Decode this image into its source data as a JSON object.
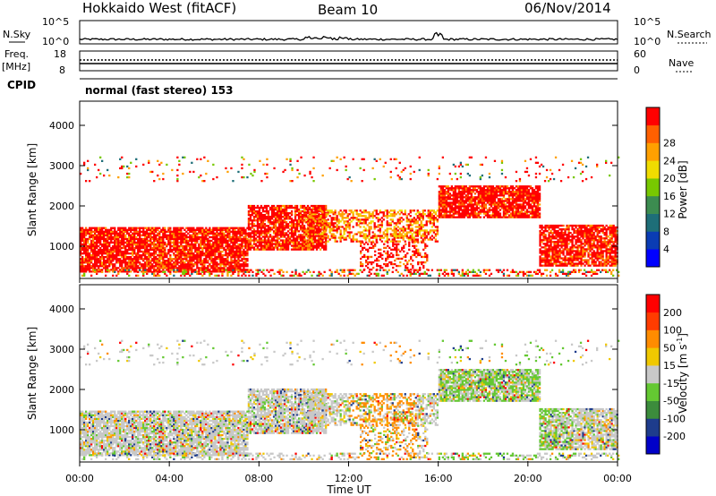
{
  "header": {
    "radar": "Hokkaido West (fitACF)",
    "beam": "Beam 10",
    "date": "06/Nov/2014"
  },
  "top_panels": {
    "nsky_label": "N.Sky",
    "nsearch_label": "N.Search",
    "noise_tick_high": "10^5",
    "noise_tick_low": "10^0",
    "freq_label": "Freq.",
    "freq_unit": "[MHz]",
    "freq_tick_high": "18",
    "freq_tick_low": "8",
    "nave_label": "Nave",
    "nave_tick_high": "60",
    "nave_tick_low": "0",
    "cpid_label": "CPID",
    "mode_text": "normal (fast stereo) 153"
  },
  "colors": {
    "noise_line": "#000000"
  },
  "chart_data": [
    {
      "type": "heatmap",
      "quantity": "Power",
      "ylabel": "Slant Range [km]",
      "ylim": [
        200,
        4600
      ],
      "yticks": [
        1000,
        2000,
        3000,
        4000
      ],
      "xlim": [
        0,
        24
      ],
      "xlabel": "",
      "colorbar": {
        "label": "Power [dB]",
        "range": [
          0,
          32
        ],
        "ticks": [
          "4",
          "8",
          "12",
          "16",
          "20",
          "24",
          "28"
        ],
        "colors": [
          "#0000ff",
          "#0a3cb4",
          "#1e6e78",
          "#3c8c50",
          "#78c800",
          "#f0dc00",
          "#ffa000",
          "#ff6000",
          "#ff0000"
        ]
      }
    },
    {
      "type": "heatmap",
      "quantity": "Velocity",
      "ylabel": "Slant Range [km]",
      "ylim": [
        200,
        4600
      ],
      "yticks": [
        1000,
        2000,
        3000,
        4000
      ],
      "xlim": [
        0,
        24
      ],
      "xlabel": "Time UT",
      "xticks": [
        "00:00",
        "04:00",
        "08:00",
        "12:00",
        "16:00",
        "20:00",
        "00:00"
      ],
      "colorbar": {
        "label": "Velocity [m s",
        "label_exp": "-1",
        "label_end": "]",
        "ticks": [
          "200",
          "100",
          "50",
          "15",
          "-15",
          "-50",
          "-100",
          "-200"
        ],
        "colors": [
          "#0000c8",
          "#1e3c8c",
          "#3c8c3c",
          "#64c832",
          "#c8c8c8",
          "#f0c800",
          "#ff8c00",
          "#ff3c00",
          "#ff0000"
        ]
      }
    }
  ]
}
